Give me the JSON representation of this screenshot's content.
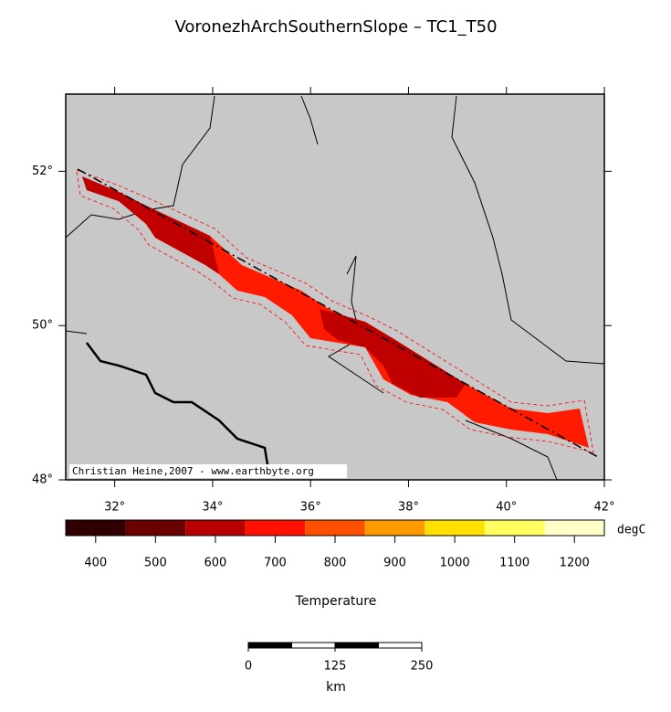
{
  "title": "VoronezhArchSouthernSlope – TC1_T50",
  "map": {
    "xlim": [
      31,
      42
    ],
    "ylim": [
      48,
      53
    ],
    "xticks": [
      {
        "value": 32,
        "label": "32°"
      },
      {
        "value": 34,
        "label": "34°"
      },
      {
        "value": 36,
        "label": "36°"
      },
      {
        "value": 38,
        "label": "38°"
      },
      {
        "value": 40,
        "label": "40°"
      },
      {
        "value": 42,
        "label": "42°"
      }
    ],
    "yticks": [
      {
        "value": 48,
        "label": "48°"
      },
      {
        "value": 50,
        "label": "50°"
      },
      {
        "value": 52,
        "label": "52°"
      }
    ],
    "credit": "Christian Heine,2007 - www.earthbyte.org"
  },
  "colorbar": {
    "lim": [
      350,
      1250
    ],
    "ticks": [
      400,
      500,
      600,
      700,
      800,
      900,
      1000,
      1100,
      1200
    ],
    "colors": [
      "#300000",
      "#6a0000",
      "#b80000",
      "#ff1000",
      "#ff5000",
      "#ff9a00",
      "#ffe000",
      "#ffff60",
      "#ffffc8"
    ],
    "unit": "degC",
    "label": "Temperature"
  },
  "scalebar": {
    "lim": [
      0,
      250
    ],
    "ticks": [
      0,
      125,
      250
    ],
    "unit": "km"
  }
}
